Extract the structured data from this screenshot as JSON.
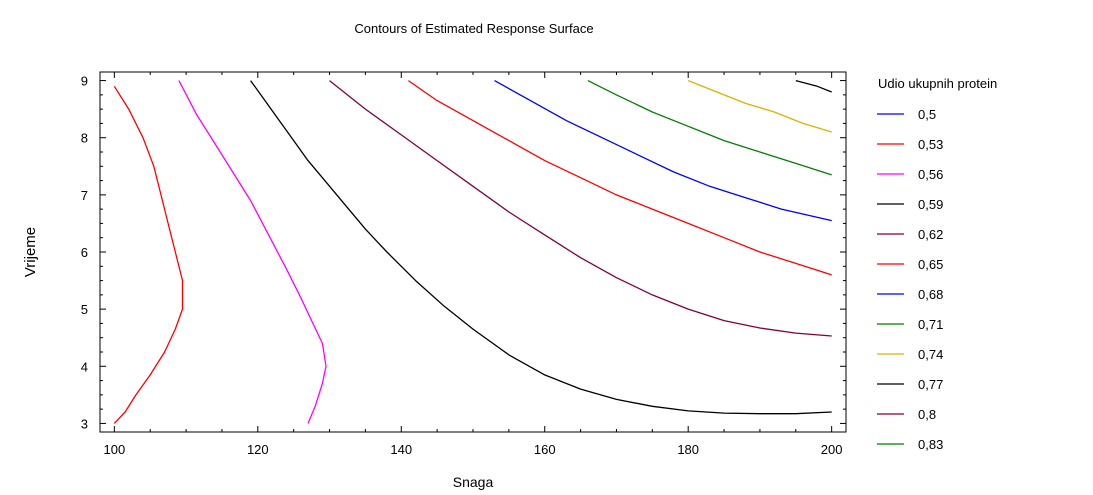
{
  "chart_data": {
    "type": "contour",
    "title": "Contours of Estimated Response Surface",
    "xlabel": "Snaga",
    "ylabel": "Vrijeme",
    "xlim": [
      98,
      202
    ],
    "ylim": [
      2.85,
      9.15
    ],
    "xticks": [
      100,
      120,
      140,
      160,
      180,
      200
    ],
    "yticks": [
      3,
      4,
      5,
      6,
      7,
      8,
      9
    ],
    "grid": false,
    "legend_position": "right",
    "legend_title": "Udio ukupnih protein",
    "levels": [
      {
        "label": "0,5",
        "color": "#0000ff"
      },
      {
        "label": "0,53",
        "color": "#ff0000"
      },
      {
        "label": "0,56",
        "color": "#ff00ff"
      },
      {
        "label": "0,59",
        "color": "#000000"
      },
      {
        "label": "0,62",
        "color": "#800040"
      },
      {
        "label": "0,65",
        "color": "#ff0000"
      },
      {
        "label": "0,68",
        "color": "#0000ff"
      },
      {
        "label": "0,71",
        "color": "#008000"
      },
      {
        "label": "0,74",
        "color": "#e0b000"
      },
      {
        "label": "0,77",
        "color": "#000000"
      },
      {
        "label": "0,8",
        "color": "#800040"
      },
      {
        "label": "0,83",
        "color": "#008000"
      }
    ],
    "series": [
      {
        "level": "0,53",
        "color": "#ff0000",
        "points": [
          [
            100,
            3
          ],
          [
            101.5,
            3.2
          ],
          [
            103,
            3.5
          ],
          [
            105,
            3.85
          ],
          [
            107,
            4.25
          ],
          [
            108.5,
            4.65
          ],
          [
            109.5,
            5
          ],
          [
            109.5,
            5.5
          ],
          [
            108.5,
            6
          ],
          [
            107.5,
            6.5
          ],
          [
            106.5,
            7
          ],
          [
            105.5,
            7.5
          ],
          [
            104,
            8
          ],
          [
            102,
            8.5
          ],
          [
            100,
            8.9
          ]
        ]
      },
      {
        "level": "0,56",
        "color": "#ff00ff",
        "points": [
          [
            127,
            3
          ],
          [
            128,
            3.3
          ],
          [
            129,
            3.7
          ],
          [
            129.5,
            4
          ],
          [
            129,
            4.4
          ],
          [
            127.5,
            4.8
          ],
          [
            126,
            5.2
          ],
          [
            124,
            5.7
          ],
          [
            121.5,
            6.3
          ],
          [
            119,
            6.9
          ],
          [
            116.5,
            7.4
          ],
          [
            114,
            7.9
          ],
          [
            111.5,
            8.4
          ],
          [
            109,
            9
          ]
        ]
      },
      {
        "level": "0,59",
        "color": "#000000",
        "points": [
          [
            119,
            9
          ],
          [
            121,
            8.65
          ],
          [
            123,
            8.3
          ],
          [
            125,
            7.95
          ],
          [
            127,
            7.6
          ],
          [
            129,
            7.3
          ],
          [
            132,
            6.85
          ],
          [
            135,
            6.4
          ],
          [
            138,
            6
          ],
          [
            142,
            5.5
          ],
          [
            146,
            5.05
          ],
          [
            150,
            4.65
          ],
          [
            155,
            4.2
          ],
          [
            160,
            3.85
          ],
          [
            165,
            3.6
          ],
          [
            170,
            3.42
          ],
          [
            175,
            3.3
          ],
          [
            180,
            3.22
          ],
          [
            185,
            3.18
          ],
          [
            190,
            3.17
          ],
          [
            195,
            3.17
          ],
          [
            200,
            3.2
          ]
        ]
      },
      {
        "level": "0,62",
        "color": "#800040",
        "points": [
          [
            130,
            9
          ],
          [
            135,
            8.5
          ],
          [
            140,
            8.05
          ],
          [
            145,
            7.6
          ],
          [
            150,
            7.15
          ],
          [
            155,
            6.7
          ],
          [
            160,
            6.3
          ],
          [
            165,
            5.9
          ],
          [
            170,
            5.55
          ],
          [
            175,
            5.25
          ],
          [
            180,
            5.0
          ],
          [
            185,
            4.8
          ],
          [
            190,
            4.67
          ],
          [
            195,
            4.58
          ],
          [
            200,
            4.53
          ]
        ]
      },
      {
        "level": "0,65",
        "color": "#ff0000",
        "points": [
          [
            141,
            9
          ],
          [
            145,
            8.65
          ],
          [
            150,
            8.3
          ],
          [
            155,
            7.95
          ],
          [
            160,
            7.6
          ],
          [
            165,
            7.3
          ],
          [
            170,
            7
          ],
          [
            175,
            6.75
          ],
          [
            180,
            6.5
          ],
          [
            185,
            6.25
          ],
          [
            190,
            6.0
          ],
          [
            195,
            5.8
          ],
          [
            200,
            5.6
          ]
        ]
      },
      {
        "level": "0,68",
        "color": "#0000ff",
        "points": [
          [
            153,
            9
          ],
          [
            158,
            8.65
          ],
          [
            163,
            8.3
          ],
          [
            168,
            8
          ],
          [
            173,
            7.7
          ],
          [
            178,
            7.4
          ],
          [
            183,
            7.15
          ],
          [
            188,
            6.95
          ],
          [
            193,
            6.75
          ],
          [
            200,
            6.55
          ]
        ]
      },
      {
        "level": "0,71",
        "color": "#008000",
        "points": [
          [
            166,
            9
          ],
          [
            170,
            8.75
          ],
          [
            175,
            8.45
          ],
          [
            180,
            8.2
          ],
          [
            185,
            7.95
          ],
          [
            190,
            7.75
          ],
          [
            195,
            7.55
          ],
          [
            200,
            7.35
          ]
        ]
      },
      {
        "level": "0,74",
        "color": "#e0b000",
        "points": [
          [
            180,
            9
          ],
          [
            184,
            8.8
          ],
          [
            188,
            8.6
          ],
          [
            192,
            8.45
          ],
          [
            196,
            8.25
          ],
          [
            200,
            8.1
          ]
        ]
      },
      {
        "level": "0,77",
        "color": "#000000",
        "points": [
          [
            195,
            9
          ],
          [
            198,
            8.9
          ],
          [
            200,
            8.8
          ]
        ]
      }
    ]
  }
}
